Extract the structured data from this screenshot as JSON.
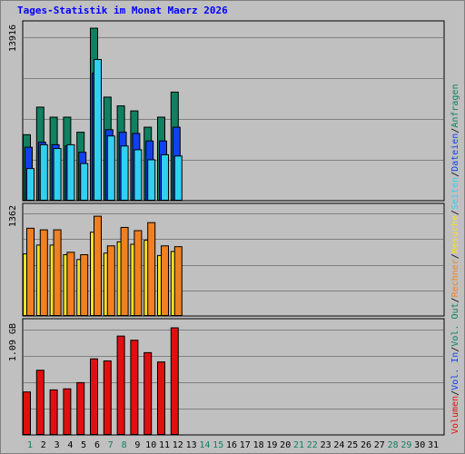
{
  "title": "Tages-Statistik im Monat Maerz 2026",
  "colors": {
    "background": "#c0c0c0",
    "title": "#0000ff",
    "grid": "#808080",
    "anfragen": "#108060",
    "dateien": "#1040f0",
    "seiten": "#30d0f0",
    "rechner": "#f08020",
    "besuche": "#f8e020",
    "volumen": "#e01010",
    "kb_in": "#1040f0",
    "kb_out": "#108060",
    "weekend": "#108060",
    "weekday": "#000000"
  },
  "legend": {
    "right": [
      {
        "text": "Volumen",
        "color": "#e01010"
      },
      {
        "text": "/",
        "color": "#000000"
      },
      {
        "text": "Vol. In",
        "color": "#1040f0"
      },
      {
        "text": "/",
        "color": "#000000"
      },
      {
        "text": "Vol. Out",
        "color": "#108060"
      },
      {
        "text": "/",
        "color": "#000000"
      },
      {
        "text": "Rechner",
        "color": "#f08020"
      },
      {
        "text": "/",
        "color": "#000000"
      },
      {
        "text": "Besuche",
        "color": "#f8e020"
      },
      {
        "text": "/",
        "color": "#000000"
      },
      {
        "text": "Seiten",
        "color": "#30d0f0"
      },
      {
        "text": "/",
        "color": "#000000"
      },
      {
        "text": "Dateien",
        "color": "#1040f0"
      },
      {
        "text": "/",
        "color": "#000000"
      },
      {
        "text": "Anfragen",
        "color": "#108060"
      }
    ]
  },
  "chart_data": [
    {
      "type": "bar",
      "panel": "hits",
      "ymax_label": "13916",
      "ylim": [
        0,
        13916
      ],
      "categories": [
        "1",
        "2",
        "3",
        "4",
        "5",
        "6",
        "7",
        "8",
        "9",
        "10",
        "11",
        "12",
        "13",
        "14",
        "15",
        "16",
        "17",
        "18",
        "19",
        "20",
        "21",
        "22",
        "23",
        "24",
        "25",
        "26",
        "27",
        "28",
        "29",
        "30",
        "31"
      ],
      "weekend_days": [
        1,
        7,
        8,
        14,
        15,
        21,
        22,
        28,
        29
      ],
      "series": [
        {
          "name": "Anfragen",
          "values": [
            5300,
            7500,
            6700,
            6700,
            5500,
            13800,
            8300,
            7600,
            7200,
            5900,
            6700,
            8700,
            0,
            0,
            0,
            0,
            0,
            0,
            0,
            0,
            0,
            0,
            0,
            0,
            0,
            0,
            0,
            0,
            0,
            0,
            0
          ]
        },
        {
          "name": "Dateien",
          "values": [
            4300,
            4700,
            4500,
            4400,
            3900,
            10200,
            5700,
            5500,
            5400,
            4800,
            4800,
            5900,
            0,
            0,
            0,
            0,
            0,
            0,
            0,
            0,
            0,
            0,
            0,
            0,
            0,
            0,
            0,
            0,
            0,
            0,
            0
          ]
        },
        {
          "name": "Seiten",
          "values": [
            2600,
            4500,
            4200,
            4500,
            3000,
            11300,
            5200,
            4400,
            4100,
            3300,
            3700,
            3600,
            0,
            0,
            0,
            0,
            0,
            0,
            0,
            0,
            0,
            0,
            0,
            0,
            0,
            0,
            0,
            0,
            0,
            0,
            0
          ]
        }
      ]
    },
    {
      "type": "bar",
      "panel": "visits",
      "ymax_label": "1362",
      "ylim": [
        0,
        1362
      ],
      "series": [
        {
          "name": "Besuche",
          "values": [
            780,
            890,
            890,
            770,
            710,
            1050,
            790,
            930,
            900,
            950,
            760,
            810,
            0,
            0,
            0,
            0,
            0,
            0,
            0,
            0,
            0,
            0,
            0,
            0,
            0,
            0,
            0,
            0,
            0,
            0,
            0
          ]
        },
        {
          "name": "Rechner",
          "values": [
            1100,
            1080,
            1080,
            800,
            770,
            1250,
            880,
            1110,
            1070,
            1170,
            880,
            870,
            0,
            0,
            0,
            0,
            0,
            0,
            0,
            0,
            0,
            0,
            0,
            0,
            0,
            0,
            0,
            0,
            0,
            0,
            0
          ]
        }
      ]
    },
    {
      "type": "bar",
      "panel": "volume",
      "ymax_label": "1.09 GB",
      "ylim": [
        0,
        1.09
      ],
      "series": [
        {
          "name": "Volumen",
          "values": [
            0.42,
            0.63,
            0.44,
            0.45,
            0.51,
            0.74,
            0.72,
            0.96,
            0.92,
            0.8,
            0.71,
            1.04,
            0,
            0,
            0,
            0,
            0,
            0,
            0,
            0,
            0,
            0,
            0,
            0,
            0,
            0,
            0,
            0,
            0,
            0,
            0
          ]
        }
      ]
    }
  ]
}
